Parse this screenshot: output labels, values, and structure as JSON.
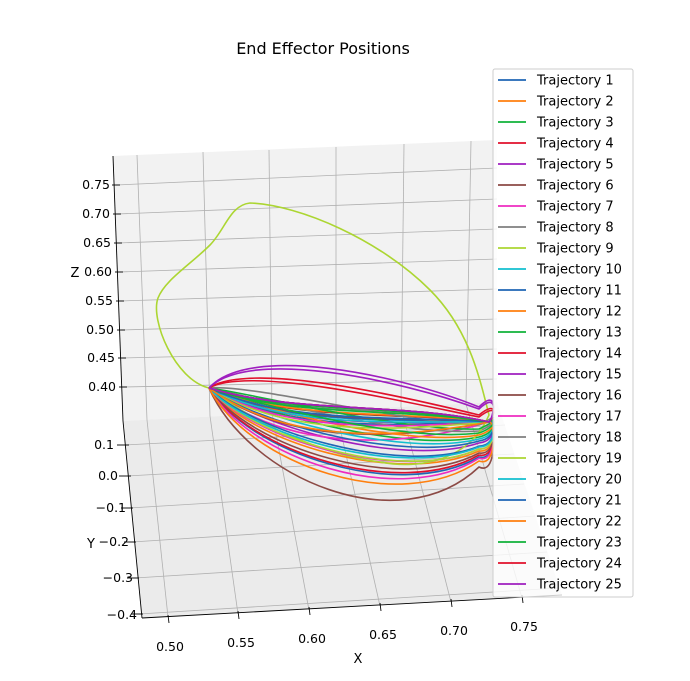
{
  "chart_data": {
    "type": "line",
    "projection": "3d",
    "title": "End Effector Positions",
    "xlabel": "X",
    "ylabel": "Y",
    "zlabel": "Z",
    "xlim": [
      0.48,
      0.77
    ],
    "ylim": [
      -0.42,
      0.18
    ],
    "zlim": [
      0.34,
      0.79
    ],
    "x_ticks": [
      "0.50",
      "0.55",
      "0.60",
      "0.65",
      "0.70",
      "0.75"
    ],
    "y_ticks": [
      "0.1",
      "0.0",
      "−0.1",
      "−0.2",
      "−0.3",
      "−0.4"
    ],
    "z_ticks": [
      "0.75",
      "0.70",
      "0.65",
      "0.60",
      "0.55",
      "0.50",
      "0.45",
      "0.40"
    ],
    "grid": true,
    "legend_position": "right",
    "series": [
      {
        "name": "Trajectory 1",
        "color": "#1f66b5"
      },
      {
        "name": "Trajectory 2",
        "color": "#ff7f0e"
      },
      {
        "name": "Trajectory 3",
        "color": "#11b23a"
      },
      {
        "name": "Trajectory 4",
        "color": "#e0102b"
      },
      {
        "name": "Trajectory 5",
        "color": "#9f1fbf"
      },
      {
        "name": "Trajectory 6",
        "color": "#8c4a45"
      },
      {
        "name": "Trajectory 7",
        "color": "#ee2bc0"
      },
      {
        "name": "Trajectory 8",
        "color": "#7f7f7f"
      },
      {
        "name": "Trajectory 9",
        "color": "#acd632"
      },
      {
        "name": "Trajectory 10",
        "color": "#12bfcf"
      },
      {
        "name": "Trajectory 11",
        "color": "#1f66b5"
      },
      {
        "name": "Trajectory 12",
        "color": "#ff7f0e"
      },
      {
        "name": "Trajectory 13",
        "color": "#11b23a"
      },
      {
        "name": "Trajectory 14",
        "color": "#e0102b"
      },
      {
        "name": "Trajectory 15",
        "color": "#9f1fbf"
      },
      {
        "name": "Trajectory 16",
        "color": "#8c4a45"
      },
      {
        "name": "Trajectory 17",
        "color": "#ee2bc0"
      },
      {
        "name": "Trajectory 18",
        "color": "#7f7f7f"
      },
      {
        "name": "Trajectory 19",
        "color": "#acd632"
      },
      {
        "name": "Trajectory 20",
        "color": "#12bfcf"
      },
      {
        "name": "Trajectory 21",
        "color": "#1f66b5"
      },
      {
        "name": "Trajectory 22",
        "color": "#ff7f0e"
      },
      {
        "name": "Trajectory 23",
        "color": "#11b23a"
      },
      {
        "name": "Trajectory 24",
        "color": "#e0102b"
      },
      {
        "name": "Trajectory 25",
        "color": "#9f1fbf"
      }
    ]
  }
}
